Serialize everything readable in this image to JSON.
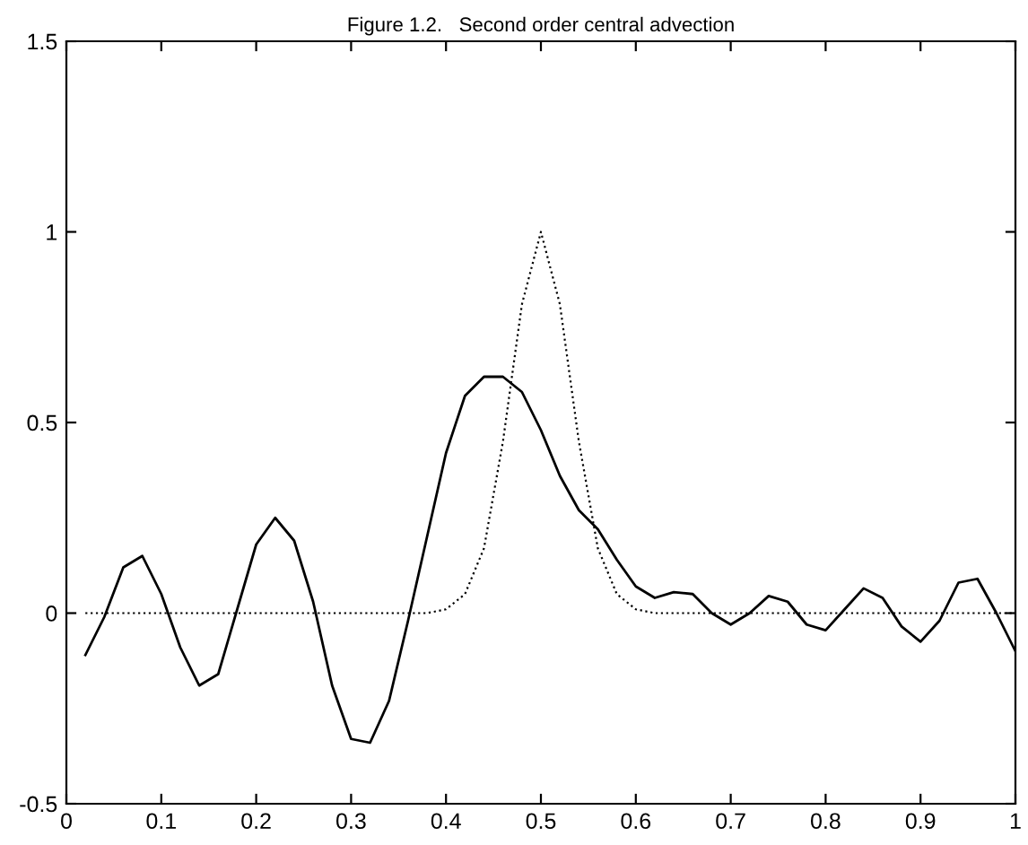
{
  "chart_data": {
    "type": "line",
    "title": "Figure 1.2.   Second order central advection",
    "series": [
      {
        "color": "#000000",
        "line_style": "solid",
        "x": [
          0.02,
          0.04,
          0.06,
          0.08,
          0.1,
          0.12,
          0.14,
          0.16,
          0.18,
          0.2,
          0.22,
          0.24,
          0.26,
          0.28,
          0.3,
          0.32,
          0.34,
          0.36,
          0.38,
          0.4,
          0.42,
          0.44,
          0.46,
          0.48,
          0.5,
          0.52,
          0.54,
          0.56,
          0.58,
          0.6,
          0.62,
          0.64,
          0.66,
          0.68,
          0.7,
          0.72,
          0.74,
          0.76,
          0.78,
          0.8,
          0.82,
          0.84,
          0.86,
          0.88,
          0.9,
          0.92,
          0.94,
          0.96,
          0.98,
          1.0
        ],
        "values": [
          -0.11,
          -0.01,
          0.12,
          0.15,
          0.05,
          -0.09,
          -0.19,
          -0.16,
          0.01,
          0.18,
          0.25,
          0.19,
          0.03,
          -0.19,
          -0.33,
          -0.34,
          -0.23,
          -0.02,
          0.2,
          0.42,
          0.57,
          0.62,
          0.62,
          0.58,
          0.48,
          0.36,
          0.27,
          0.22,
          0.14,
          0.07,
          0.04,
          0.055,
          0.05,
          0.0,
          -0.03,
          0.0,
          0.045,
          0.03,
          -0.03,
          -0.045,
          0.01,
          0.065,
          0.04,
          -0.035,
          -0.075,
          -0.02,
          0.08,
          0.09,
          0.0,
          -0.1
        ]
      },
      {
        "color": "#000000",
        "line_style": "dotted",
        "x": [
          0.02,
          0.04,
          0.06,
          0.08,
          0.1,
          0.12,
          0.14,
          0.16,
          0.18,
          0.2,
          0.22,
          0.24,
          0.26,
          0.28,
          0.3,
          0.32,
          0.34,
          0.36,
          0.38,
          0.4,
          0.42,
          0.44,
          0.46,
          0.48,
          0.5,
          0.52,
          0.54,
          0.56,
          0.58,
          0.6,
          0.62,
          0.64,
          0.66,
          0.68,
          0.7,
          0.72,
          0.74,
          0.76,
          0.78,
          0.8,
          0.82,
          0.84,
          0.86,
          0.88,
          0.9,
          0.92,
          0.94,
          0.96,
          0.98,
          1.0
        ],
        "values": [
          0,
          0,
          0,
          0,
          0,
          0,
          0,
          0,
          0,
          0,
          0,
          0,
          0,
          0,
          0,
          0,
          0,
          0,
          0,
          0.01,
          0.05,
          0.17,
          0.45,
          0.81,
          1.0,
          0.81,
          0.45,
          0.17,
          0.05,
          0.01,
          0,
          0,
          0,
          0,
          0,
          0,
          0,
          0,
          0,
          0,
          0,
          0,
          0,
          0,
          0,
          0,
          0,
          0,
          0,
          0
        ]
      }
    ],
    "xlim": [
      0,
      1
    ],
    "ylim": [
      -0.5,
      1.5
    ],
    "xticks": [
      0,
      0.1,
      0.2,
      0.3,
      0.4,
      0.5,
      0.6,
      0.7,
      0.8,
      0.9,
      1
    ],
    "yticks": [
      -0.5,
      0,
      0.5,
      1,
      1.5
    ],
    "grid": false,
    "legend": false,
    "marker": "none"
  }
}
